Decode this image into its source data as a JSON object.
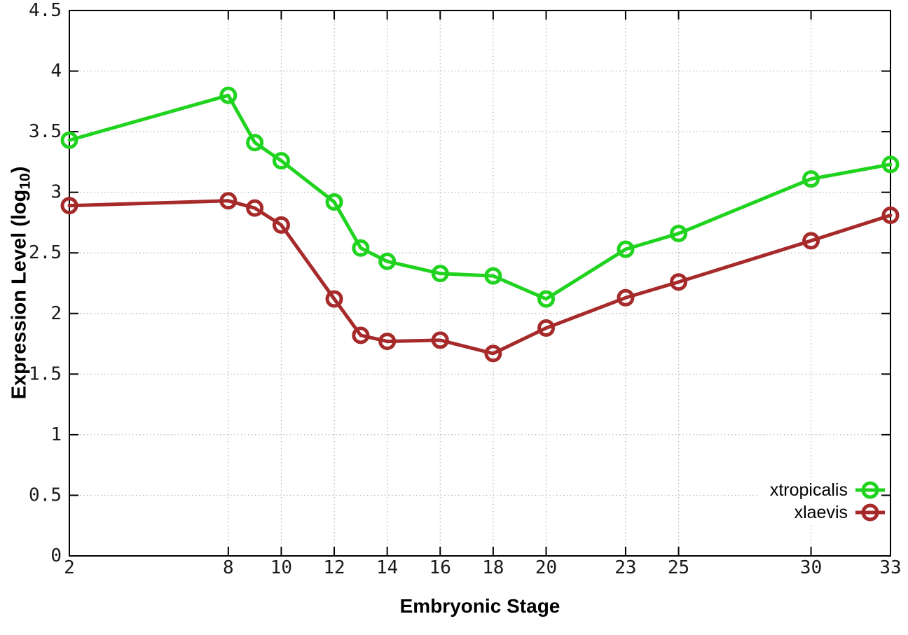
{
  "chart_data": {
    "type": "line",
    "title": "",
    "xlabel": "Embryonic Stage",
    "ylabel": "Expression Level (log10)",
    "ylabel_parts": {
      "before_sub": "Expression Level (log",
      "subscript": "10",
      "after_sub": ")"
    },
    "xlim": [
      2,
      33
    ],
    "ylim": [
      0,
      4.5
    ],
    "x_ticks": [
      2,
      8,
      10,
      12,
      14,
      16,
      18,
      20,
      23,
      25,
      30,
      33
    ],
    "y_ticks": [
      0,
      0.5,
      1,
      1.5,
      2,
      2.5,
      3,
      3.5,
      4,
      4.5
    ],
    "grid": true,
    "legend_position": "bottom-right",
    "x": [
      2,
      8,
      9,
      10,
      12,
      13,
      14,
      16,
      18,
      20,
      23,
      25,
      30,
      33
    ],
    "series": [
      {
        "name": "xtropicalis",
        "color": "#1FD31F",
        "values": [
          3.43,
          3.8,
          3.41,
          3.26,
          2.92,
          2.54,
          2.43,
          2.33,
          2.31,
          2.12,
          2.53,
          2.66,
          3.11,
          3.23
        ]
      },
      {
        "name": "xlaevis",
        "color": "#A62A2A",
        "values": [
          2.89,
          2.93,
          2.87,
          2.73,
          2.12,
          1.82,
          1.77,
          1.78,
          1.67,
          1.88,
          2.13,
          2.26,
          2.6,
          2.81
        ]
      }
    ]
  },
  "style": {
    "background": "#ffffff",
    "border_color": "#000000",
    "grid_color": "#b3b3b3",
    "tick_label_color": "#1a1a1a"
  }
}
